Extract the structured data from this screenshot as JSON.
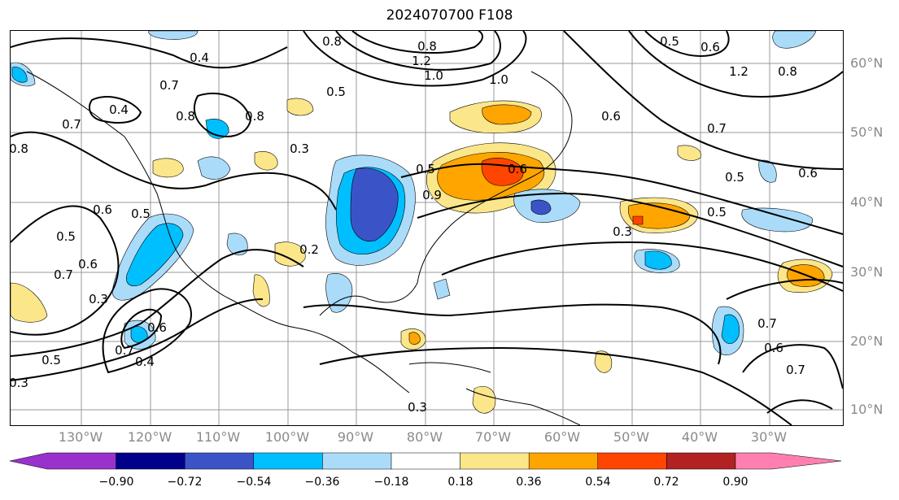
{
  "title": "2024070700 F108",
  "longitude_labels": [
    "130°W",
    "120°W",
    "110°W",
    "100°W",
    "90°W",
    "80°W",
    "70°W",
    "60°W",
    "50°W",
    "40°W",
    "30°W"
  ],
  "latitude_labels": [
    "60°N",
    "50°N",
    "40°N",
    "30°N",
    "20°N",
    "10°N"
  ],
  "contour_labels": [
    "0.4",
    "0.7",
    "0.4",
    "0.8",
    "0.7",
    "0.8",
    "0.5",
    "0.3",
    "0.5",
    "0.6",
    "0.5",
    "0.6",
    "0.7",
    "0.3",
    "0.2",
    "0.4",
    "0.5",
    "0.7",
    "0.6",
    "0.3",
    "0.8",
    "1.2",
    "1.0",
    "0.8",
    "1.0",
    "1.2",
    "0.5",
    "0.6",
    "0.8",
    "0.6",
    "0.7",
    "0.5",
    "0.6",
    "0.5",
    "0.6",
    "0.9",
    "0.3",
    "0.5",
    "0.7",
    "0.6",
    "0.7",
    "0.3",
    "0.8"
  ],
  "colorbar": {
    "tick_labels": [
      "−0.90",
      "−0.72",
      "−0.54",
      "−0.36",
      "−0.18",
      "0.18",
      "0.36",
      "0.54",
      "0.72",
      "0.90"
    ],
    "colors": [
      "#9932cc",
      "#00008b",
      "#3a54c8",
      "#00bfff",
      "#aadcfa",
      "#ffffff",
      "#fce68a",
      "#ffa500",
      "#ff4500",
      "#b22222",
      "#ff80b0"
    ]
  }
}
